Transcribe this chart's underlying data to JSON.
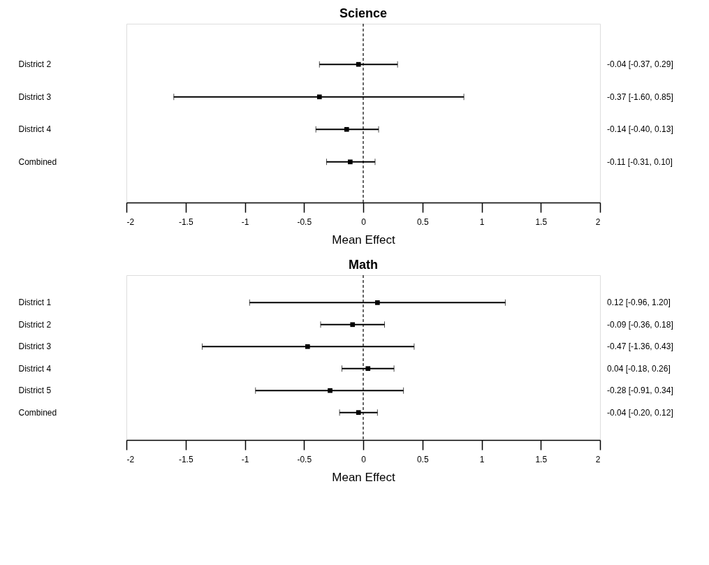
{
  "chart_data": [
    {
      "type": "scatter",
      "title": "Science",
      "orientation": "horizontal",
      "categories": [
        "District 2",
        "District 3",
        "District 4",
        "Combined"
      ],
      "values": [
        -0.04,
        -0.37,
        -0.14,
        -0.11
      ],
      "errors": [
        [
          -0.37,
          0.29
        ],
        [
          -1.6,
          0.85
        ],
        [
          -0.4,
          0.13
        ],
        [
          -0.31,
          0.1
        ]
      ],
      "value_labels": [
        "-0.04 [-0.37, 0.29]",
        "-0.37 [-1.60, 0.85]",
        "-0.14 [-0.40, 0.13]",
        "-0.11 [-0.31, 0.10]"
      ],
      "color": "#000000",
      "marker": "square",
      "xlim": [
        -2,
        2
      ],
      "xticks": [
        -2,
        -1.5,
        -1,
        -0.5,
        0,
        0.5,
        1,
        1.5,
        2
      ],
      "xlabel": "Mean Effect",
      "ref_lines": [
        {
          "axis": "x",
          "value": 0,
          "line_style": "dashed"
        }
      ]
    },
    {
      "type": "scatter",
      "title": "Math",
      "orientation": "horizontal",
      "categories": [
        "District 1",
        "District 2",
        "District 3",
        "District 4",
        "District 5",
        "Combined"
      ],
      "values": [
        0.12,
        -0.09,
        -0.47,
        0.04,
        -0.28,
        -0.04
      ],
      "errors": [
        [
          -0.96,
          1.2
        ],
        [
          -0.36,
          0.18
        ],
        [
          -1.36,
          0.43
        ],
        [
          -0.18,
          0.26
        ],
        [
          -0.91,
          0.34
        ],
        [
          -0.2,
          0.12
        ]
      ],
      "value_labels": [
        "0.12 [-0.96, 1.20]",
        "-0.09 [-0.36, 0.18]",
        "-0.47 [-1.36, 0.43]",
        "0.04 [-0.18, 0.26]",
        "-0.28 [-0.91, 0.34]",
        "-0.04 [-0.20, 0.12]"
      ],
      "color": "#000000",
      "marker": "square",
      "xlim": [
        -2,
        2
      ],
      "xticks": [
        -2,
        -1.5,
        -1,
        -0.5,
        0,
        0.5,
        1,
        1.5,
        2
      ],
      "xlabel": "Mean Effect",
      "ref_lines": [
        {
          "axis": "x",
          "value": 0,
          "line_style": "dashed"
        }
      ]
    }
  ]
}
